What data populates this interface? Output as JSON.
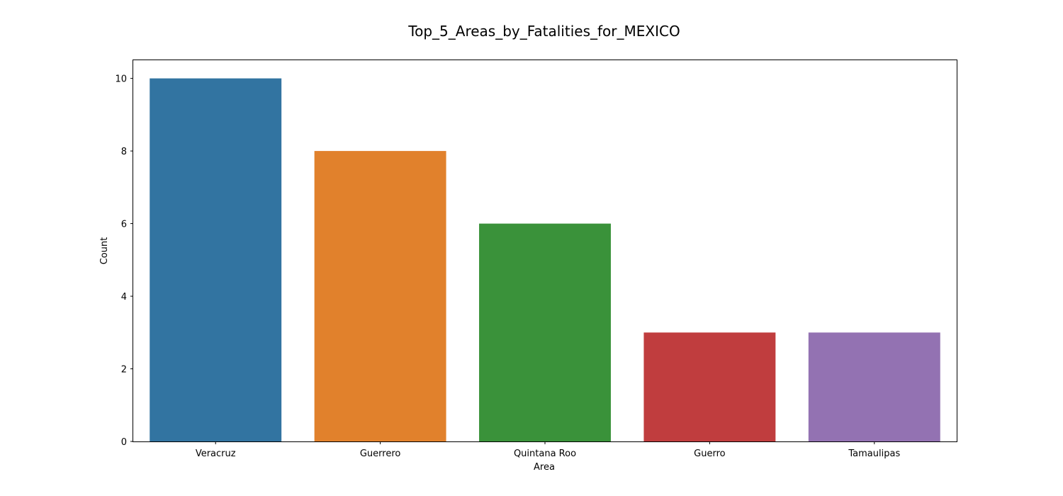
{
  "chart_data": {
    "type": "bar",
    "title": "Top_5_Areas_by_Fatalities_for_MEXICO",
    "xlabel": "Area",
    "ylabel": "Count",
    "categories": [
      "Veracruz",
      "Guerrero",
      "Quintana Roo",
      "Guerro",
      "Tamaulipas"
    ],
    "values": [
      10,
      8,
      6,
      3,
      3
    ],
    "colors": [
      "#3274a1",
      "#e1812c",
      "#3a923a",
      "#c03d3e",
      "#9372b2"
    ],
    "ylim": [
      0,
      10.5
    ],
    "yticks": [
      0,
      2,
      4,
      6,
      8,
      10
    ],
    "grid": false,
    "legend": "none"
  }
}
